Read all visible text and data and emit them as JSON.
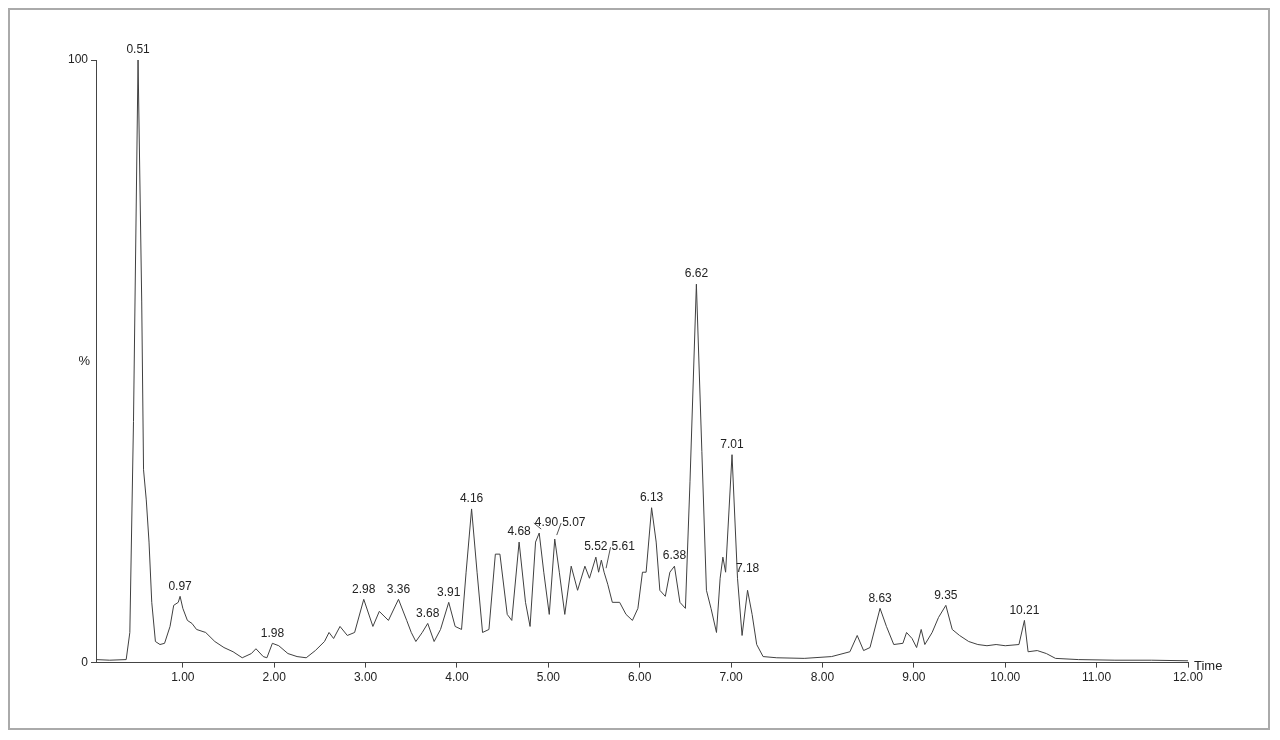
{
  "chart_data": {
    "type": "line",
    "xlabel": "Time",
    "ylabel": "%",
    "x": [
      0.05,
      0.2,
      0.38,
      0.42,
      0.46,
      0.51,
      0.55,
      0.57,
      0.6,
      0.63,
      0.66,
      0.7,
      0.75,
      0.8,
      0.86,
      0.9,
      0.95,
      0.97,
      1.0,
      1.05,
      1.1,
      1.15,
      1.25,
      1.35,
      1.45,
      1.55,
      1.65,
      1.75,
      1.8,
      1.88,
      1.92,
      1.98,
      2.05,
      2.15,
      2.25,
      2.35,
      2.45,
      2.55,
      2.6,
      2.65,
      2.72,
      2.8,
      2.88,
      2.98,
      3.08,
      3.15,
      3.25,
      3.36,
      3.45,
      3.5,
      3.55,
      3.62,
      3.68,
      3.75,
      3.82,
      3.91,
      3.98,
      4.05,
      4.1,
      4.16,
      4.22,
      4.28,
      4.35,
      4.42,
      4.47,
      4.55,
      4.6,
      4.68,
      4.75,
      4.8,
      4.86,
      4.9,
      4.95,
      5.01,
      5.07,
      5.12,
      5.18,
      5.25,
      5.32,
      5.4,
      5.45,
      5.52,
      5.55,
      5.58,
      5.61,
      5.65,
      5.7,
      5.78,
      5.85,
      5.92,
      5.98,
      6.03,
      6.07,
      6.13,
      6.18,
      6.22,
      6.28,
      6.33,
      6.38,
      6.44,
      6.5,
      6.55,
      6.62,
      6.68,
      6.73,
      6.78,
      6.84,
      6.88,
      6.91,
      6.94,
      7.01,
      7.07,
      7.12,
      7.18,
      7.23,
      7.28,
      7.35,
      7.5,
      7.8,
      8.1,
      8.3,
      8.38,
      8.45,
      8.52,
      8.63,
      8.7,
      8.78,
      8.88,
      8.92,
      8.98,
      9.03,
      9.08,
      9.12,
      9.2,
      9.27,
      9.35,
      9.42,
      9.5,
      9.6,
      9.7,
      9.8,
      9.9,
      10.0,
      10.15,
      10.21,
      10.25,
      10.35,
      10.45,
      10.55,
      10.8,
      11.2,
      11.6,
      12.0
    ],
    "series": [
      {
        "color": "#404040",
        "values": [
          0.5,
          0.4,
          0.5,
          5,
          40,
          100,
          60,
          32,
          27,
          20,
          10,
          3.5,
          3,
          3.2,
          6,
          9.5,
          10,
          11,
          9,
          7,
          6.5,
          5.5,
          5,
          3.5,
          2.5,
          1.8,
          0.8,
          1.5,
          2.3,
          1,
          0.8,
          3.2,
          2.8,
          1.5,
          1,
          0.8,
          2,
          3.5,
          5,
          4,
          6,
          4.5,
          5,
          10.5,
          6,
          8.5,
          7,
          10.5,
          7,
          5,
          3.5,
          5,
          6.5,
          3.5,
          5.5,
          10,
          6,
          5.5,
          15,
          25.5,
          15,
          5,
          5.5,
          18,
          18,
          8,
          7,
          20,
          10,
          6,
          20,
          21.5,
          15,
          8,
          20.5,
          15,
          8,
          16,
          12,
          16,
          14,
          17.5,
          15,
          17,
          15,
          13,
          10,
          10,
          8,
          7,
          9,
          15,
          15,
          25.7,
          20,
          12,
          11,
          15,
          16,
          10,
          9,
          30,
          62.8,
          35,
          12,
          9,
          5,
          14,
          17.5,
          15,
          34.5,
          14,
          4.5,
          12,
          8,
          3,
          1,
          0.8,
          0.7,
          1,
          1.8,
          4.5,
          2,
          2.5,
          9,
          6,
          3,
          3.2,
          5,
          4,
          2.5,
          5.5,
          3,
          5,
          7.5,
          9.5,
          5.5,
          4.5,
          3.5,
          3,
          2.8,
          3,
          2.8,
          3,
          7,
          1.8,
          2,
          1.5,
          0.7,
          0.5,
          0.4,
          0.4,
          0.3
        ]
      }
    ],
    "xlim": [
      0.05,
      12.0
    ],
    "xticks": [
      {
        "value": 1,
        "label": "1.00"
      },
      {
        "value": 2,
        "label": "2.00"
      },
      {
        "value": 3,
        "label": "3.00"
      },
      {
        "value": 4,
        "label": "4.00"
      },
      {
        "value": 5,
        "label": "5.00"
      },
      {
        "value": 6,
        "label": "6.00"
      },
      {
        "value": 7,
        "label": "7.00"
      },
      {
        "value": 8,
        "label": "8.00"
      },
      {
        "value": 9,
        "label": "9.00"
      },
      {
        "value": 10,
        "label": "10.00"
      },
      {
        "value": 11,
        "label": "11.00"
      },
      {
        "value": 12,
        "label": "12.00"
      }
    ],
    "ylim": [
      0,
      100
    ],
    "yticks": [
      0,
      100
    ],
    "grid": false,
    "legend": false,
    "marker": "none",
    "line_style": "solid",
    "annotations": [
      {
        "text": "0.51",
        "x": 0.51,
        "y": 100
      },
      {
        "text": "0.97",
        "x": 0.97,
        "y": 11
      },
      {
        "text": "1.98",
        "x": 1.98,
        "y": 3.2
      },
      {
        "text": "2.98",
        "x": 2.98,
        "y": 10.5
      },
      {
        "text": "3.36",
        "x": 3.36,
        "y": 10.5
      },
      {
        "text": "3.68",
        "x": 3.68,
        "y": 6.5
      },
      {
        "text": "3.91",
        "x": 3.91,
        "y": 10
      },
      {
        "text": "4.16",
        "x": 4.16,
        "y": 25.5
      },
      {
        "text": "4.68",
        "x": 4.68,
        "y": 20
      },
      {
        "text": "4.90",
        "x": 4.9,
        "y": 21.5
      },
      {
        "text": "5.07",
        "x": 5.07,
        "y": 20.5
      },
      {
        "text": "5.52",
        "x": 5.52,
        "y": 17.5
      },
      {
        "text": "5.61",
        "x": 5.61,
        "y": 15
      },
      {
        "text": "6.13",
        "x": 6.13,
        "y": 25.7
      },
      {
        "text": "6.38",
        "x": 6.38,
        "y": 16
      },
      {
        "text": "6.62",
        "x": 6.62,
        "y": 62.8
      },
      {
        "text": "7.01",
        "x": 7.01,
        "y": 34.5
      },
      {
        "text": "7.18",
        "x": 7.18,
        "y": 12
      },
      {
        "text": "8.63",
        "x": 8.63,
        "y": 9
      },
      {
        "text": "9.35",
        "x": 9.35,
        "y": 9.5
      },
      {
        "text": "10.21",
        "x": 10.21,
        "y": 7
      }
    ]
  }
}
